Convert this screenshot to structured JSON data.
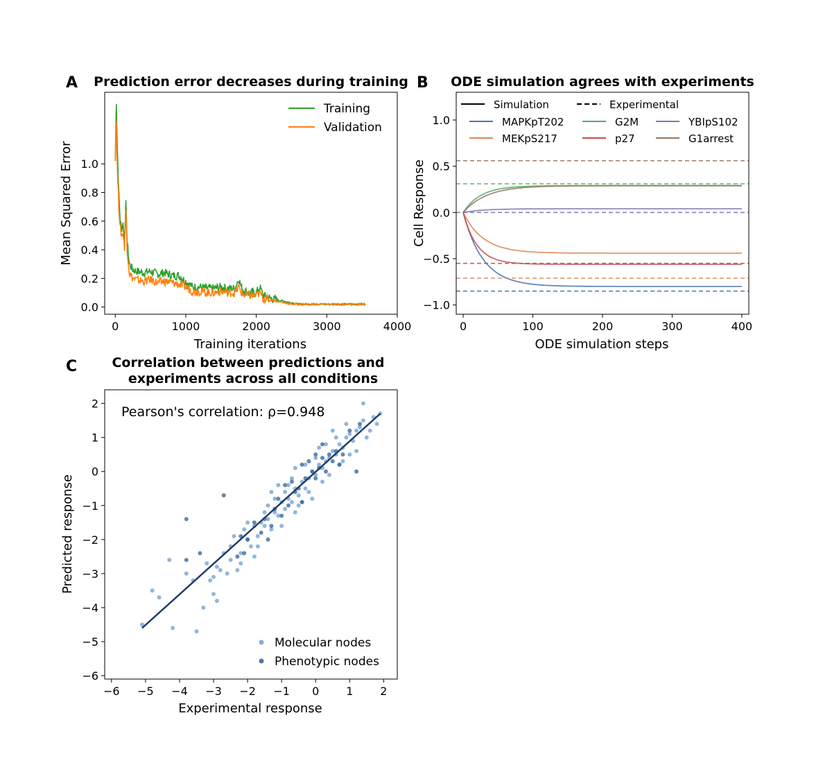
{
  "chart_data": [
    {
      "panel": "A",
      "type": "line",
      "title": "Prediction error decreases during training",
      "xlabel": "Training iterations",
      "ylabel": "Mean Squared Error",
      "xlim": [
        -150,
        4000
      ],
      "ylim": [
        -0.05,
        1.5
      ],
      "xticks": [
        0,
        1000,
        2000,
        3000,
        4000
      ],
      "yticks": [
        0.0,
        0.2,
        0.4,
        0.6,
        0.8,
        1.0
      ],
      "ytick_labels": [
        "0.0",
        "0.2",
        "0.4",
        "0.6",
        "0.8",
        "1.0"
      ],
      "legend_position": "upper-right",
      "series": [
        {
          "name": "Training",
          "color": "#2ca02c",
          "x": [
            0,
            15,
            30,
            50,
            70,
            90,
            110,
            130,
            150,
            170,
            200,
            250,
            300,
            400,
            500,
            600,
            700,
            800,
            900,
            1000,
            1100,
            1200,
            1300,
            1400,
            1500,
            1600,
            1700,
            1750,
            1800,
            1900,
            2000,
            2050,
            2100,
            2200,
            2300,
            2400,
            2500,
            2600,
            2800,
            3000,
            3200,
            3400,
            3550
          ],
          "y": [
            1.02,
            1.44,
            1.1,
            0.8,
            0.6,
            0.55,
            0.58,
            0.48,
            0.72,
            0.45,
            0.3,
            0.26,
            0.25,
            0.24,
            0.25,
            0.23,
            0.24,
            0.22,
            0.22,
            0.18,
            0.14,
            0.14,
            0.13,
            0.13,
            0.14,
            0.13,
            0.13,
            0.2,
            0.12,
            0.1,
            0.1,
            0.14,
            0.08,
            0.06,
            0.05,
            0.04,
            0.03,
            0.02,
            0.02,
            0.02,
            0.02,
            0.02,
            0.02
          ]
        },
        {
          "name": "Validation",
          "color": "#ff7f0e",
          "x": [
            0,
            15,
            30,
            50,
            70,
            90,
            110,
            130,
            150,
            170,
            200,
            250,
            300,
            400,
            500,
            600,
            700,
            800,
            900,
            1000,
            1100,
            1200,
            1300,
            1400,
            1500,
            1600,
            1700,
            1750,
            1800,
            1900,
            2000,
            2050,
            2100,
            2200,
            2300,
            2400,
            2500,
            2600,
            2800,
            3000,
            3200,
            3400,
            3550
          ],
          "y": [
            1.05,
            1.3,
            0.95,
            0.72,
            0.55,
            0.5,
            0.52,
            0.42,
            0.66,
            0.4,
            0.24,
            0.2,
            0.19,
            0.18,
            0.19,
            0.17,
            0.18,
            0.17,
            0.16,
            0.14,
            0.11,
            0.11,
            0.1,
            0.1,
            0.11,
            0.1,
            0.1,
            0.14,
            0.09,
            0.08,
            0.08,
            0.1,
            0.06,
            0.05,
            0.04,
            0.03,
            0.02,
            0.02,
            0.02,
            0.02,
            0.02,
            0.02,
            0.02
          ]
        }
      ]
    },
    {
      "panel": "B",
      "type": "line",
      "title": "ODE simulation agrees with experiments",
      "xlabel": "ODE simulation steps",
      "ylabel": "Cell Response",
      "xlim": [
        -10,
        410
      ],
      "ylim": [
        -1.1,
        1.3
      ],
      "xticks": [
        0,
        100,
        200,
        300,
        400
      ],
      "yticks": [
        -1.0,
        -0.5,
        0.0,
        0.5,
        1.0
      ],
      "ytick_labels": [
        "−1.0",
        "−0.5",
        "0.0",
        "0.5",
        "1.0"
      ],
      "style_legend": [
        {
          "label": "Simulation",
          "dash": "solid"
        },
        {
          "label": "Experimental",
          "dash": "dashed"
        }
      ],
      "legend_position": "top",
      "series": [
        {
          "name": "MAPKpT202",
          "color": "#4c72b0",
          "final": -0.8,
          "rate": 0.035,
          "experimental": -0.85
        },
        {
          "name": "MEKpS217",
          "color": "#dd8452",
          "final": -0.44,
          "rate": 0.035,
          "experimental": -0.71
        },
        {
          "name": "G2M",
          "color": "#55a868",
          "final": 0.29,
          "rate": 0.04,
          "experimental": 0.31
        },
        {
          "name": "p27",
          "color": "#c44e52",
          "final": -0.56,
          "rate": 0.05,
          "experimental": -0.55
        },
        {
          "name": "YBIpS102",
          "color": "#8172b3",
          "final": 0.04,
          "rate": 0.035,
          "experimental": 0.0
        },
        {
          "name": "G1arrest",
          "color": "#937860",
          "final": 0.29,
          "rate": 0.03,
          "experimental": 0.56
        }
      ]
    },
    {
      "panel": "C",
      "type": "scatter",
      "title_lines": [
        "Correlation between predictions and",
        "experiments across all conditions"
      ],
      "xlabel": "Experimental response",
      "ylabel": "Predicted response",
      "xlim": [
        -6.2,
        2.4
      ],
      "ylim": [
        -6.1,
        2.4
      ],
      "xticks": [
        -6,
        -5,
        -4,
        -3,
        -2,
        -1,
        0,
        1,
        2
      ],
      "xtick_labels": [
        "−6",
        "−5",
        "−4",
        "−3",
        "−2",
        "−1",
        "0",
        "1",
        "2"
      ],
      "yticks": [
        -6,
        -5,
        -4,
        -3,
        -2,
        -1,
        0,
        1,
        2
      ],
      "ytick_labels": [
        "−6",
        "−5",
        "−4",
        "−3",
        "−2",
        "−1",
        "0",
        "1",
        "2"
      ],
      "annotation": "Pearson's correlation: ρ=0.948",
      "legend_position": "lower-right",
      "fit_line": {
        "x": [
          -5.1,
          1.9
        ],
        "y": [
          -4.6,
          1.7
        ],
        "color": "#1f3d6b"
      },
      "series": [
        {
          "name": "Molecular nodes",
          "color": "#6c9fd0",
          "points": [
            [
              -5.1,
              -4.5
            ],
            [
              -4.8,
              -3.5
            ],
            [
              -4.6,
              -3.7
            ],
            [
              -4.3,
              -2.6
            ],
            [
              -4.2,
              -4.6
            ],
            [
              -3.5,
              -4.7
            ],
            [
              -3.3,
              -4.0
            ],
            [
              -3.8,
              -3.0
            ],
            [
              -3.1,
              -3.2
            ],
            [
              -3.0,
              -3.6
            ],
            [
              -2.9,
              -3.8
            ],
            [
              -3.0,
              -3.1
            ],
            [
              -2.8,
              -2.9
            ],
            [
              -2.6,
              -3.0
            ],
            [
              -2.5,
              -2.6
            ],
            [
              -2.3,
              -2.9
            ],
            [
              -2.2,
              -2.4
            ],
            [
              -2.0,
              -2.0
            ],
            [
              -1.9,
              -2.2
            ],
            [
              -1.8,
              -2.5
            ],
            [
              -1.7,
              -1.9
            ],
            [
              -1.5,
              -1.6
            ],
            [
              -1.4,
              -1.4
            ],
            [
              -1.3,
              -1.7
            ],
            [
              -1.2,
              -1.2
            ],
            [
              -1.1,
              -1.3
            ],
            [
              -1.0,
              -0.9
            ],
            [
              -0.9,
              -1.1
            ],
            [
              -0.8,
              -0.8
            ],
            [
              -0.7,
              -0.9
            ],
            [
              -0.6,
              -0.5
            ],
            [
              -0.5,
              -0.7
            ],
            [
              -0.4,
              -0.3
            ],
            [
              -0.3,
              -0.5
            ],
            [
              -0.2,
              -0.2
            ],
            [
              -0.1,
              0.0
            ],
            [
              0.0,
              -0.1
            ],
            [
              0.1,
              0.2
            ],
            [
              0.2,
              0.1
            ],
            [
              0.3,
              0.3
            ],
            [
              0.4,
              0.4
            ],
            [
              0.5,
              0.6
            ],
            [
              0.6,
              0.5
            ],
            [
              0.7,
              0.8
            ],
            [
              0.8,
              0.7
            ],
            [
              0.9,
              1.0
            ],
            [
              1.0,
              1.1
            ],
            [
              1.1,
              0.9
            ],
            [
              1.2,
              1.2
            ],
            [
              1.3,
              1.3
            ],
            [
              1.4,
              1.5
            ],
            [
              1.5,
              1.0
            ],
            [
              1.6,
              1.2
            ],
            [
              1.7,
              1.6
            ],
            [
              1.8,
              1.4
            ],
            [
              1.9,
              1.7
            ],
            [
              1.4,
              2.0
            ],
            [
              -1.2,
              -0.8
            ],
            [
              -0.9,
              -0.6
            ],
            [
              -0.6,
              -1.2
            ],
            [
              -0.4,
              -0.9
            ],
            [
              -0.2,
              -0.6
            ],
            [
              0.0,
              0.4
            ],
            [
              0.2,
              -0.3
            ],
            [
              -1.4,
              -1.0
            ],
            [
              -1.6,
              -1.5
            ],
            [
              -0.8,
              -0.4
            ],
            [
              -0.5,
              -1.0
            ],
            [
              0.3,
              0.8
            ],
            [
              0.6,
              1.0
            ],
            [
              -2.4,
              -1.9
            ],
            [
              -2.1,
              -1.7
            ],
            [
              -3.6,
              -3.2
            ],
            [
              -2.7,
              -2.4
            ],
            [
              -1.0,
              -1.6
            ],
            [
              -0.7,
              -0.2
            ],
            [
              0.4,
              -0.1
            ],
            [
              0.8,
              0.3
            ],
            [
              1.0,
              0.5
            ],
            [
              -1.8,
              -1.6
            ],
            [
              -1.3,
              -0.6
            ],
            [
              -0.3,
              0.2
            ],
            [
              0.5,
              1.2
            ],
            [
              0.9,
              1.4
            ],
            [
              -1.5,
              -1.2
            ],
            [
              -0.1,
              -0.8
            ],
            [
              -2.9,
              -2.8
            ],
            [
              -2.5,
              -2.2
            ],
            [
              -2.0,
              -1.5
            ],
            [
              -1.1,
              -0.4
            ],
            [
              -0.6,
              0.1
            ],
            [
              0.1,
              0.7
            ],
            [
              0.7,
              0.2
            ],
            [
              1.2,
              0.6
            ],
            [
              -3.2,
              -2.7
            ],
            [
              -2.2,
              -2.7
            ],
            [
              -1.7,
              -2.2
            ]
          ]
        },
        {
          "name": "Phenotypic nodes",
          "color": "#2f5f94",
          "points": [
            [
              -3.8,
              -1.4
            ],
            [
              -2.7,
              -0.7
            ],
            [
              -3.8,
              -2.6
            ],
            [
              -3.4,
              -2.4
            ],
            [
              -2.1,
              -2.4
            ],
            [
              -2.0,
              -2.0
            ],
            [
              -1.8,
              -1.5
            ],
            [
              -1.6,
              -1.8
            ],
            [
              -1.4,
              -2.0
            ],
            [
              -1.3,
              -1.6
            ],
            [
              -1.2,
              -1.1
            ],
            [
              -1.0,
              -1.3
            ],
            [
              -0.8,
              -1.0
            ],
            [
              -0.6,
              -0.6
            ],
            [
              -0.5,
              -0.5
            ],
            [
              -0.4,
              0.2
            ],
            [
              -0.3,
              -0.2
            ],
            [
              -0.2,
              0.3
            ],
            [
              -0.1,
              0.0
            ],
            [
              0.0,
              0.5
            ],
            [
              0.1,
              0.1
            ],
            [
              0.2,
              0.4
            ],
            [
              0.3,
              0.0
            ],
            [
              0.4,
              0.5
            ],
            [
              0.5,
              0.3
            ],
            [
              0.6,
              0.6
            ],
            [
              0.7,
              0.2
            ],
            [
              1.2,
              0.0
            ],
            [
              1.0,
              1.2
            ],
            [
              1.3,
              1.4
            ],
            [
              -1.5,
              -1.4
            ],
            [
              -2.3,
              -2.5
            ],
            [
              -2.2,
              -1.9
            ],
            [
              -0.9,
              -0.4
            ],
            [
              -0.7,
              -0.3
            ],
            [
              0.0,
              -0.2
            ],
            [
              0.2,
              0.8
            ],
            [
              0.8,
              0.5
            ],
            [
              -1.1,
              -0.8
            ],
            [
              -0.4,
              -0.9
            ]
          ]
        }
      ]
    }
  ]
}
